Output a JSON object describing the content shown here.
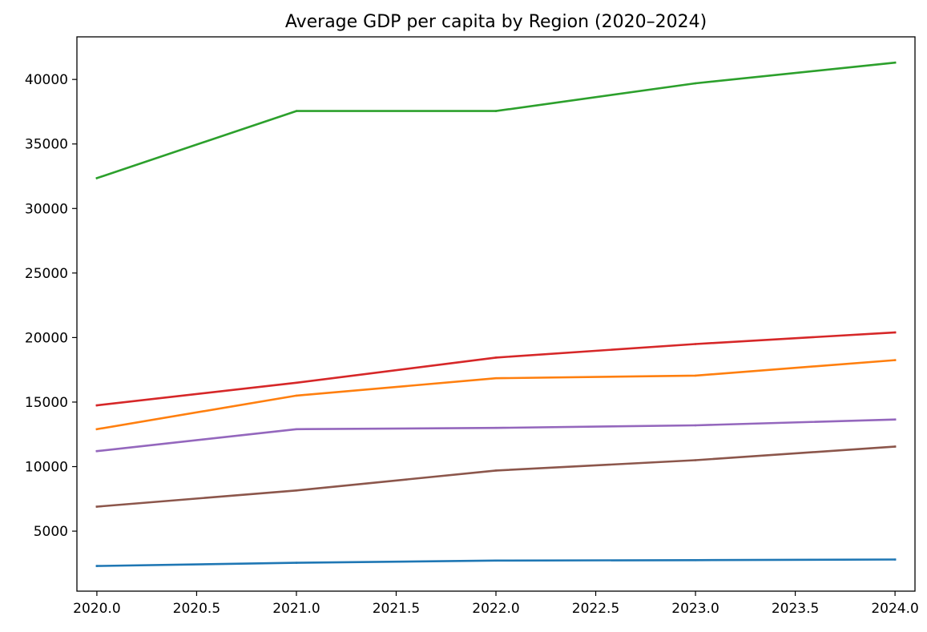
{
  "chart_data": {
    "type": "line",
    "title": "Average GDP per capita by Region (2020–2024)",
    "xlabel": "",
    "ylabel": "",
    "x": [
      2020,
      2021,
      2022,
      2023,
      2024
    ],
    "xlim": [
      2019.9,
      2024.1
    ],
    "ylim": [
      350,
      43300
    ],
    "xticks": [
      2020.0,
      2020.5,
      2021.0,
      2021.5,
      2022.0,
      2022.5,
      2023.0,
      2023.5,
      2024.0
    ],
    "xtick_labels": [
      "2020.0",
      "2020.5",
      "2021.0",
      "2021.5",
      "2022.0",
      "2022.5",
      "2023.0",
      "2023.5",
      "2024.0"
    ],
    "yticks": [
      5000,
      10000,
      15000,
      20000,
      25000,
      30000,
      35000,
      40000
    ],
    "ytick_labels": [
      "5000",
      "10000",
      "15000",
      "20000",
      "25000",
      "30000",
      "35000",
      "40000"
    ],
    "grid": false,
    "legend": "none",
    "series": [
      {
        "color": "#1f77b4",
        "values": [
          2300,
          2550,
          2720,
          2750,
          2800
        ]
      },
      {
        "color": "#ff7f0e",
        "values": [
          12900,
          15500,
          16850,
          17050,
          18250
        ]
      },
      {
        "color": "#2ca02c",
        "values": [
          32350,
          37550,
          37550,
          39700,
          41300
        ]
      },
      {
        "color": "#d62728",
        "values": [
          14750,
          16500,
          18450,
          19500,
          20400
        ]
      },
      {
        "color": "#9467bd",
        "values": [
          11200,
          12900,
          13000,
          13200,
          13650
        ]
      },
      {
        "color": "#8c564b",
        "values": [
          6900,
          8150,
          9700,
          10500,
          11550
        ]
      }
    ]
  }
}
